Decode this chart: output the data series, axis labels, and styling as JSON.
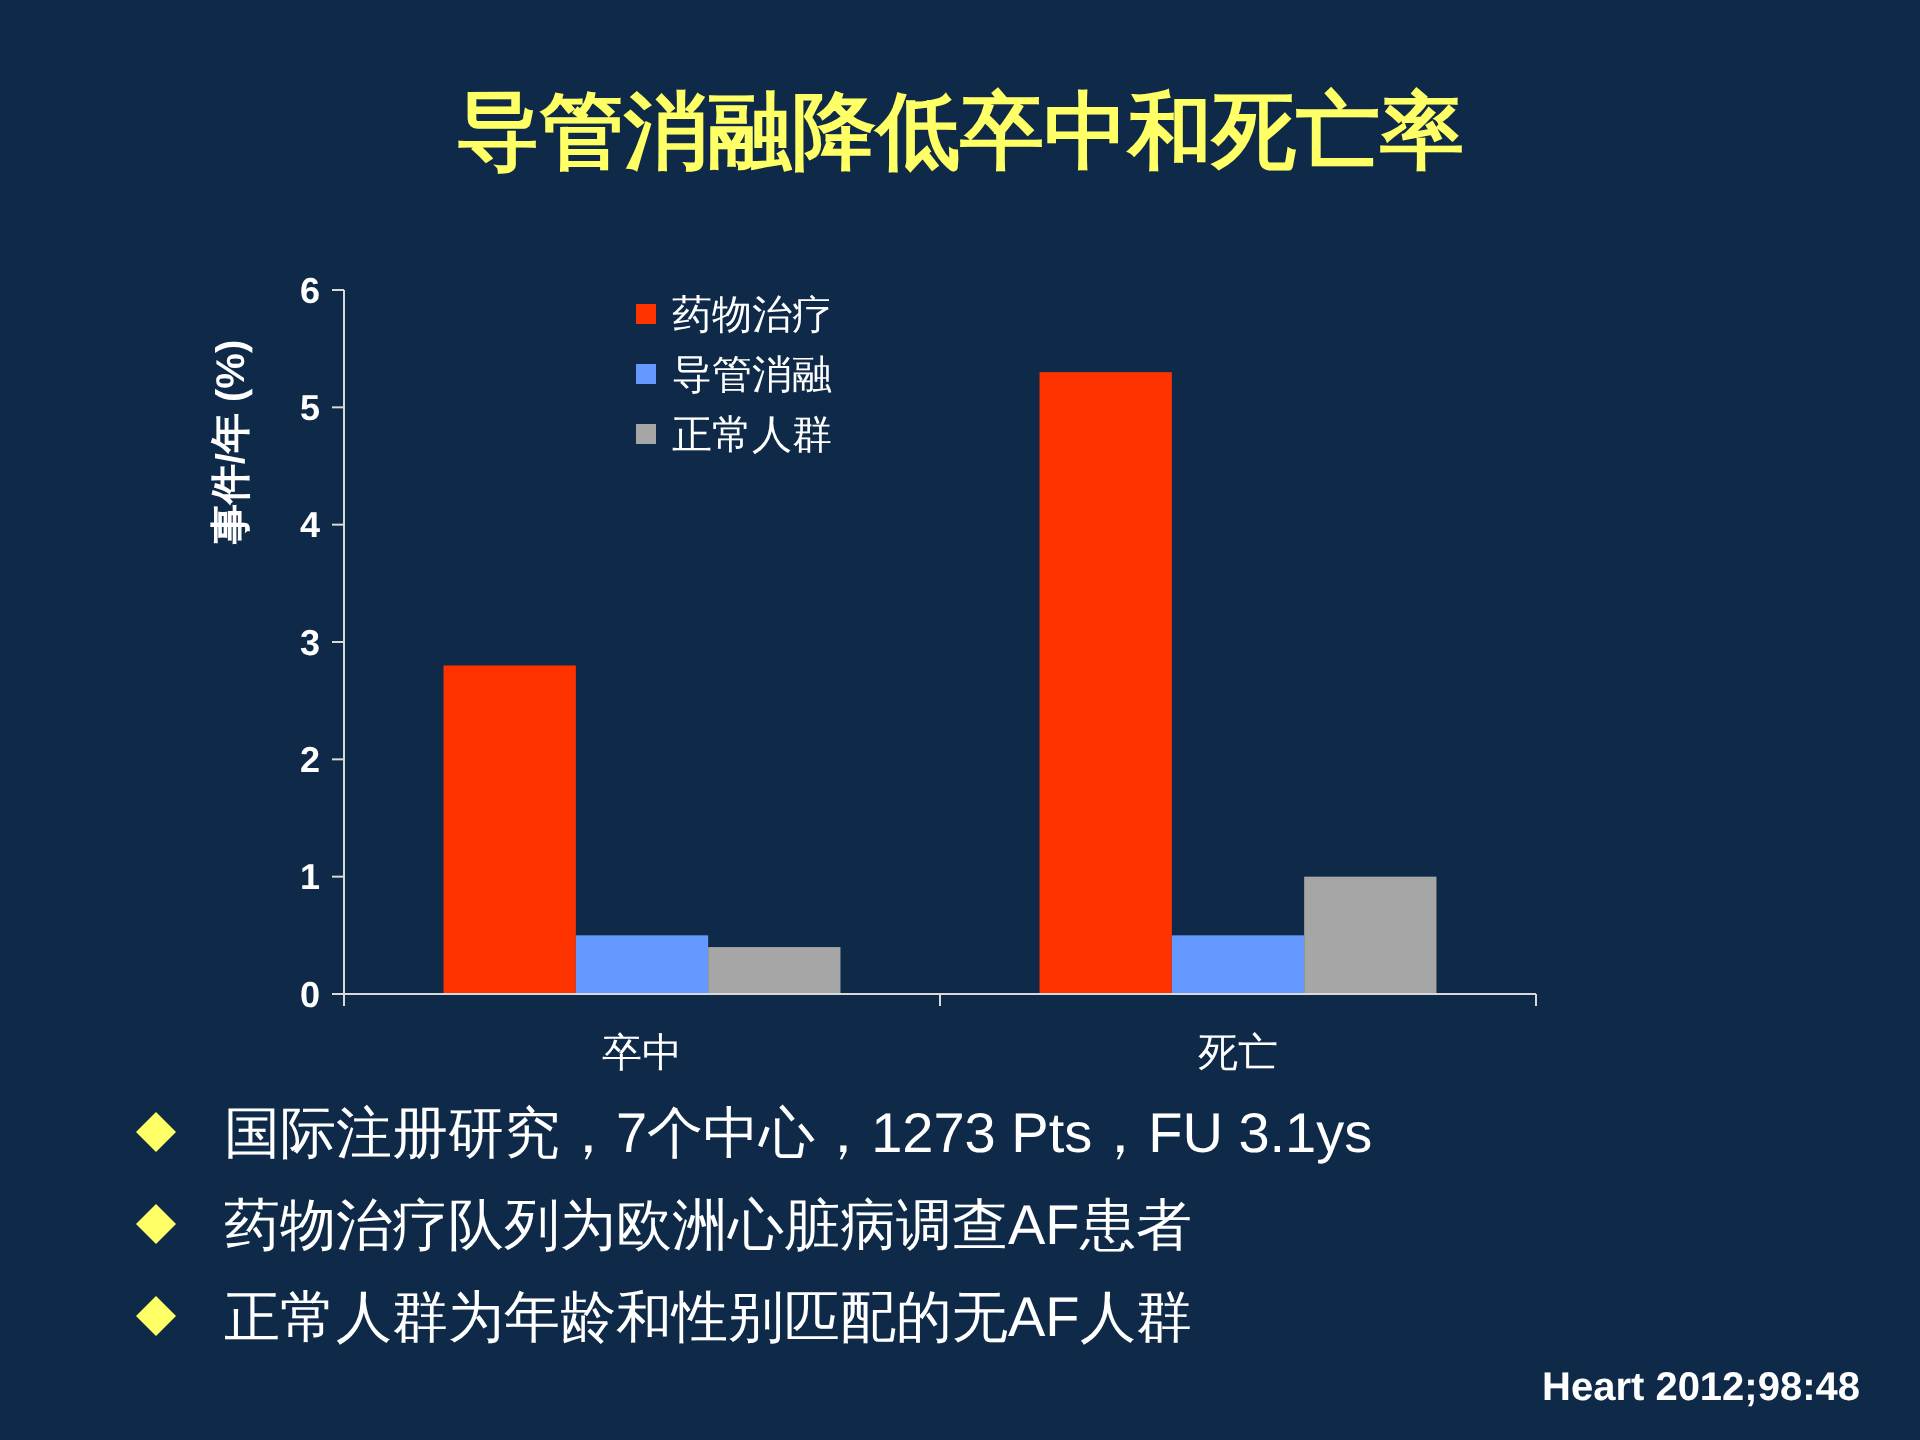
{
  "chart_data": {
    "type": "bar",
    "title": "导管消融降低卒中和死亡率",
    "ylabel": "事件/年 (%)",
    "categories": [
      "卒中",
      "死亡"
    ],
    "series": [
      {
        "name": "药物治疗",
        "color": "#ff3300",
        "values": [
          2.8,
          5.3
        ]
      },
      {
        "name": "导管消融",
        "color": "#6699ff",
        "values": [
          0.5,
          0.5
        ]
      },
      {
        "name": "正常人群",
        "color": "#a6a6a6",
        "values": [
          0.4,
          1.0
        ]
      }
    ],
    "ylim": [
      0,
      6
    ],
    "yticks": [
      0,
      1,
      2,
      3,
      4,
      5,
      6
    ],
    "grid": false,
    "legend": "top left",
    "annotations": [
      "国际注册研究，7个中心，1273 Pts，FU 3.1ys",
      "药物治疗队列为欧洲心脏病调查AF患者",
      "正常人群为年龄和性别匹配的无AF人群",
      "Heart 2012;98:48"
    ]
  }
}
